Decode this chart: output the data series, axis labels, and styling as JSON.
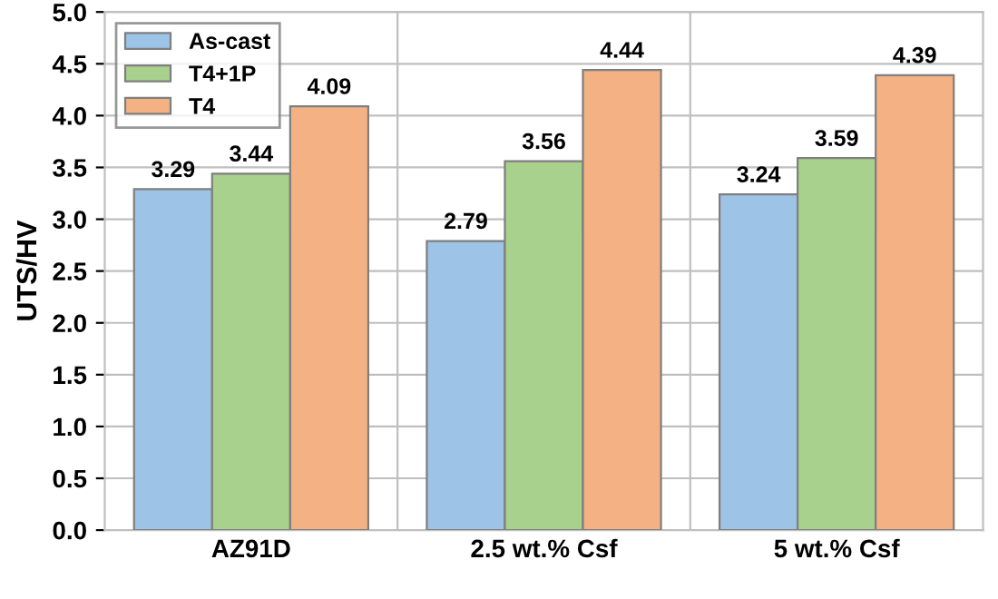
{
  "chart_data": {
    "type": "bar",
    "ylabel": "UTS/HV",
    "categories": [
      "AZ91D",
      "2.5 wt.% Csf",
      "5 wt.% Csf"
    ],
    "series": [
      {
        "name": "As-cast",
        "color": "#9dc3e6",
        "values": [
          3.29,
          2.79,
          3.24
        ]
      },
      {
        "name": "T4+1P",
        "color": "#a9d18e",
        "values": [
          3.44,
          3.56,
          3.59
        ]
      },
      {
        "name": "T4",
        "color": "#f4b183",
        "values": [
          4.09,
          4.44,
          4.39
        ]
      }
    ],
    "ylim": [
      0,
      5
    ],
    "yticks": [
      "0.0",
      "0.5",
      "1.0",
      "1.5",
      "2.0",
      "2.5",
      "3.0",
      "3.5",
      "4.0",
      "4.5",
      "5.0"
    ],
    "grid": true,
    "legend": "top left",
    "data_labels": true
  }
}
